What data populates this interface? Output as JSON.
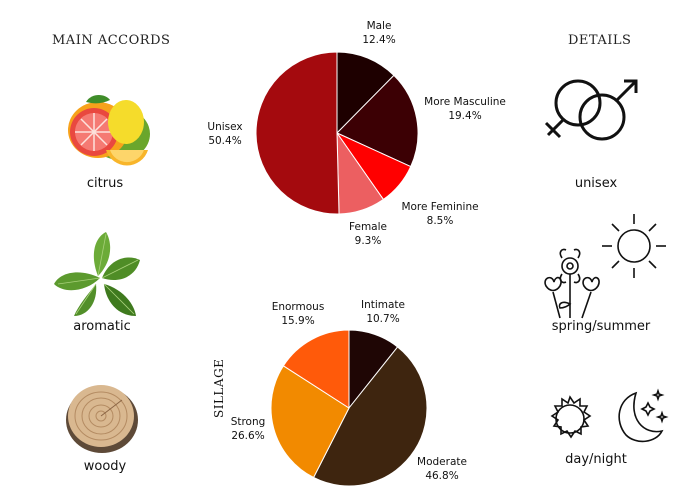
{
  "left": {
    "title": "MAIN ACCORDS",
    "items": [
      {
        "label": "citrus",
        "icon": "citrus-fruits-icon"
      },
      {
        "label": "aromatic",
        "icon": "mint-leaves-icon"
      },
      {
        "label": "woody",
        "icon": "wood-slice-icon"
      }
    ]
  },
  "right": {
    "title": "DETAILS",
    "items": [
      {
        "label": "unisex",
        "icon": "gender-symbols-icon"
      },
      {
        "label": "spring/summer",
        "icon": "sun-flowers-icon"
      },
      {
        "label": "day/night",
        "icon": "sun-moon-icon"
      }
    ]
  },
  "sillage_label": "SILLAGE",
  "chart_data": [
    {
      "type": "pie",
      "title": "",
      "slices": [
        {
          "label": "Male",
          "value_text": "12.4%",
          "value": 12.4,
          "color": "#1e0000"
        },
        {
          "label": "More Masculine",
          "value_text": "19.4%",
          "value": 19.4,
          "color": "#3c0004"
        },
        {
          "label": "More Feminine",
          "value_text": "8.5%",
          "value": 8.5,
          "color": "#ff0000"
        },
        {
          "label": "Female",
          "value_text": "9.3%",
          "value": 9.3,
          "color": "#ec5f61"
        },
        {
          "label": "Unisex",
          "value_text": "50.4%",
          "value": 50.4,
          "color": "#a40a0e"
        }
      ]
    },
    {
      "type": "pie",
      "title": "",
      "slices": [
        {
          "label": "Intimate",
          "value_text": "10.7%",
          "value": 10.7,
          "color": "#1f0605"
        },
        {
          "label": "Moderate",
          "value_text": "46.8%",
          "value": 46.8,
          "color": "#3e250f"
        },
        {
          "label": "Strong",
          "value_text": "26.6%",
          "value": 26.6,
          "color": "#f28a00"
        },
        {
          "label": "Enormous",
          "value_text": "15.9%",
          "value": 15.9,
          "color": "#ff5a0a"
        }
      ]
    }
  ]
}
